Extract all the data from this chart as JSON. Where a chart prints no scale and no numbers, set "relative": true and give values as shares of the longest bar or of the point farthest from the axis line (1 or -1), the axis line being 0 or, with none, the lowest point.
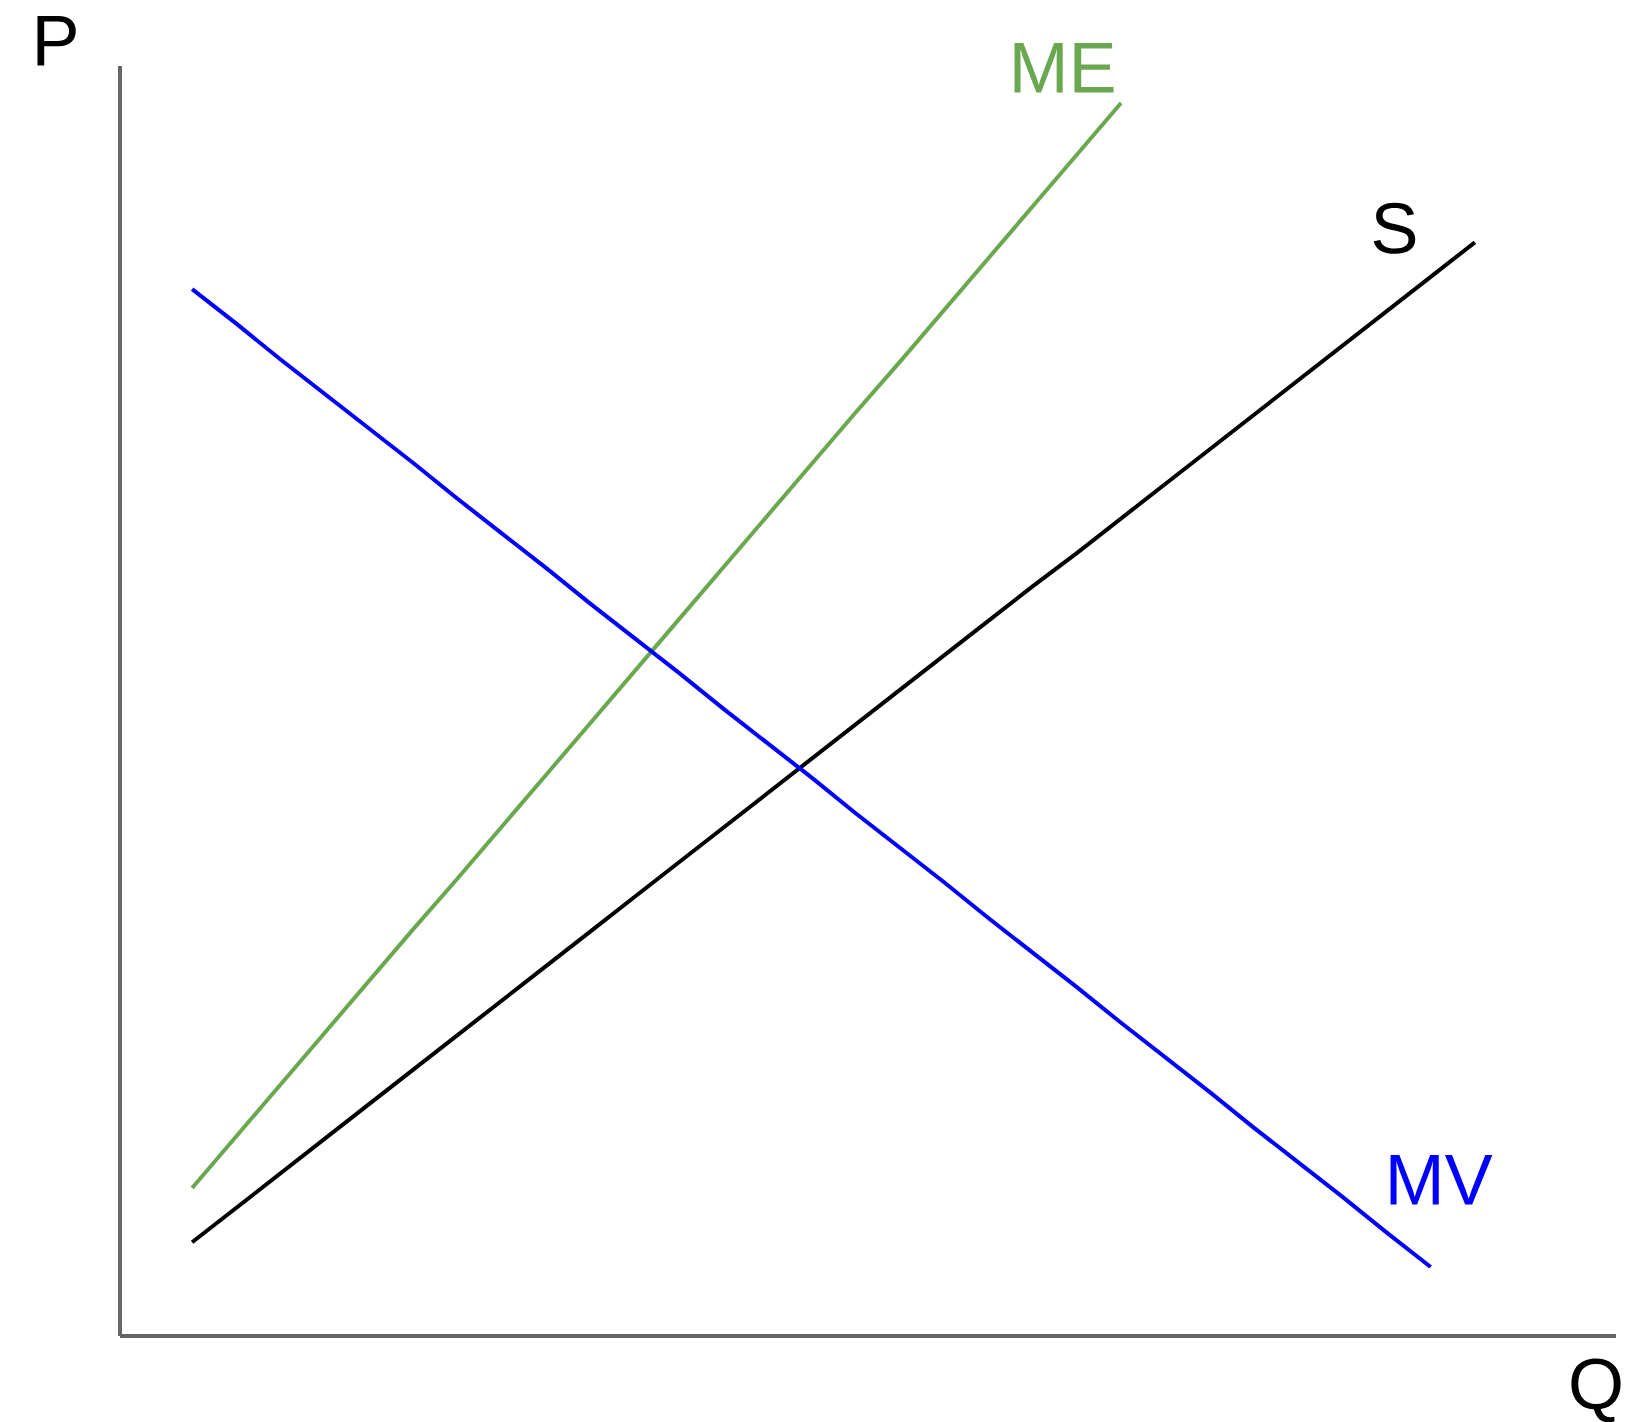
{
  "chart_data": {
    "type": "line",
    "relative": true,
    "xlabel": "Q",
    "ylabel": "P",
    "categories": [
      null,
      null,
      null,
      null,
      null,
      null,
      null,
      null,
      null,
      null,
      null,
      null,
      null,
      null,
      null,
      null,
      null,
      null,
      null,
      null,
      null,
      null,
      null,
      null,
      null,
      null,
      null,
      null,
      null,
      null
    ],
    "series": [
      {
        "name": "ME",
        "color": "#6aa84f",
        "values": [
          0.12,
          0.162,
          0.204,
          0.246,
          0.288,
          0.33,
          0.371,
          0.413,
          0.455,
          0.497,
          0.539,
          0.581,
          0.623,
          0.665,
          0.707,
          0.749,
          0.79,
          0.832,
          0.874,
          0.916,
          0.958,
          1.0,
          null,
          null,
          null,
          null,
          null,
          null,
          null,
          null
        ]
      },
      {
        "name": "S",
        "color": "#000000",
        "values": [
          0.076,
          0.104,
          0.132,
          0.16,
          0.188,
          0.216,
          0.244,
          0.272,
          0.3,
          0.328,
          0.356,
          0.384,
          0.412,
          0.44,
          0.468,
          0.496,
          0.524,
          0.552,
          0.58,
          0.608,
          0.635,
          0.663,
          0.691,
          0.719,
          0.747,
          0.775,
          0.803,
          0.831,
          0.859,
          0.887
        ]
      },
      {
        "name": "MV",
        "color": "#0000ff",
        "values": [
          0.849,
          0.821,
          0.792,
          0.764,
          0.736,
          0.708,
          0.679,
          0.651,
          0.623,
          0.594,
          0.566,
          0.538,
          0.509,
          0.481,
          0.453,
          0.424,
          0.396,
          0.368,
          0.339,
          0.311,
          0.283,
          0.254,
          0.226,
          0.198,
          0.169,
          0.141,
          0.113,
          0.084,
          0.056,
          null
        ]
      }
    ]
  }
}
